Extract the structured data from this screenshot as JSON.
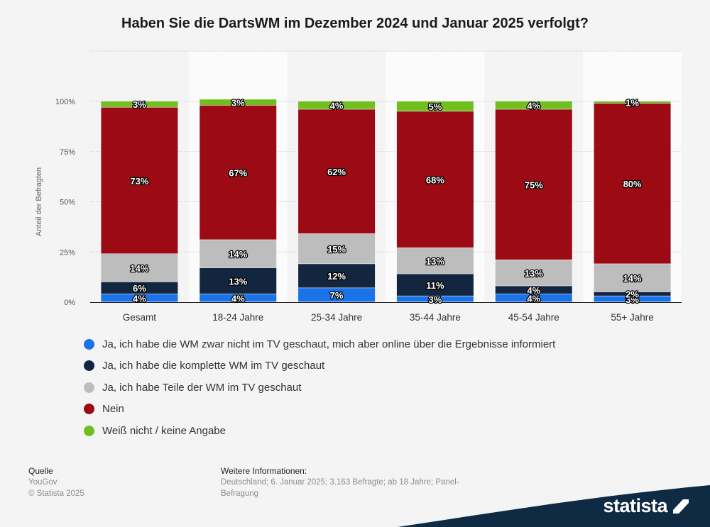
{
  "title": "Haben Sie die DartsWM im Dezember 2024 und Januar 2025 verfolgt?",
  "chart_data": {
    "type": "bar",
    "stacked": true,
    "ylabel": "Anteil der Befragten",
    "xlabel": "",
    "ylim": [
      0,
      100
    ],
    "yticks": [
      "0%",
      "25%",
      "50%",
      "75%",
      "100%"
    ],
    "grid": true,
    "legend_position": "bottom",
    "categories": [
      "Gesamt",
      "18-24 Jahre",
      "25-34 Jahre",
      "35-44 Jahre",
      "45-54 Jahre",
      "55+ Jahre"
    ],
    "series": [
      {
        "name": "Ja, ich habe die WM zwar nicht im TV geschaut, mich aber online über die Ergebnisse informiert",
        "color": "#1a73e8",
        "values": [
          4,
          4,
          7,
          3,
          4,
          3
        ],
        "labels": [
          "4%",
          "4%",
          "7%",
          "3%",
          "4%",
          "3%"
        ]
      },
      {
        "name": "Ja, ich habe die komplette WM im TV geschaut",
        "color": "#13263f",
        "values": [
          6,
          13,
          12,
          11,
          4,
          2
        ],
        "labels": [
          "6%",
          "13%",
          "12%",
          "11%",
          "4%",
          "2%"
        ]
      },
      {
        "name": "Ja, ich habe Teile der WM im TV geschaut",
        "color": "#bdbdbd",
        "values": [
          14,
          14,
          15,
          13,
          13,
          14
        ],
        "labels": [
          "14%",
          "14%",
          "15%",
          "13%",
          "13%",
          "14%"
        ]
      },
      {
        "name": "Nein",
        "color": "#9c0a14",
        "values": [
          73,
          67,
          62,
          68,
          75,
          80
        ],
        "labels": [
          "73%",
          "67%",
          "62%",
          "68%",
          "75%",
          "80%"
        ]
      },
      {
        "name": "Weiß nicht / keine Angabe",
        "color": "#6fc01d",
        "values": [
          3,
          3,
          4,
          5,
          4,
          1
        ],
        "labels": [
          "3%",
          "3%",
          "4%",
          "5%",
          "4%",
          "1%"
        ]
      }
    ]
  },
  "footer": {
    "source_heading": "Quelle",
    "source": "YouGov",
    "copyright": "© Statista 2025",
    "info_heading": "Weitere Informationen:",
    "info_text": "Deutschland; 6. Januar 2025; 3.163 Befragte; ab 18 Jahre; Panel-Befragung"
  },
  "brand": {
    "name": "statista",
    "color": "#0f2b44"
  }
}
